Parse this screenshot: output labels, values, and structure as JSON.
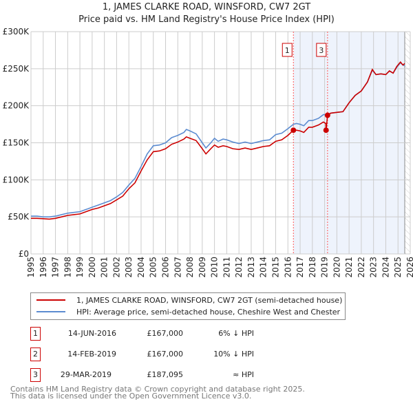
{
  "chart_data": {
    "type": "line",
    "title": "1, JAMES CLARKE ROAD, WINSFORD, CW7 2GT",
    "subtitle": "Price paid vs. HM Land Registry's House Price Index (HPI)",
    "xlim": [
      1995,
      2026
    ],
    "ylim": [
      0,
      300000
    ],
    "yticks": [
      0,
      50000,
      100000,
      150000,
      200000,
      250000,
      300000
    ],
    "ytick_labels": [
      "£0",
      "£50K",
      "£100K",
      "£150K",
      "£200K",
      "£250K",
      "£300K"
    ],
    "xtick_labels": [
      "1995",
      "1996",
      "1997",
      "1998",
      "1999",
      "2000",
      "2001",
      "2002",
      "2003",
      "2004",
      "2005",
      "2006",
      "2007",
      "2008",
      "2009",
      "2010",
      "2011",
      "2012",
      "2013",
      "2014",
      "2015",
      "2016",
      "2017",
      "2018",
      "2019",
      "2020",
      "2021",
      "2022",
      "2023",
      "2024",
      "2025",
      "2026"
    ],
    "grid": true,
    "colors": {
      "property": "#cc0000",
      "hpi": "#5b8bd0",
      "shade": "#eef3fc"
    },
    "shade_from": 2016.45,
    "hatch_from": 2025.55,
    "series": [
      {
        "name": "1, JAMES CLARKE ROAD, WINSFORD, CW7 2GT (semi-detached house)",
        "points": [
          [
            1995,
            48
          ],
          [
            1995.5,
            48
          ],
          [
            1996,
            47.5
          ],
          [
            1996.5,
            47
          ],
          [
            1997,
            48
          ],
          [
            1997.5,
            50
          ],
          [
            1998,
            52
          ],
          [
            1998.5,
            53
          ],
          [
            1999,
            54
          ],
          [
            1999.5,
            57
          ],
          [
            2000,
            60
          ],
          [
            2000.5,
            62
          ],
          [
            2001,
            65
          ],
          [
            2001.5,
            68
          ],
          [
            2002,
            73
          ],
          [
            2002.5,
            78
          ],
          [
            2003,
            88
          ],
          [
            2003.5,
            96
          ],
          [
            2004,
            112
          ],
          [
            2004.5,
            127
          ],
          [
            2005,
            138
          ],
          [
            2005.5,
            139
          ],
          [
            2006,
            142
          ],
          [
            2006.5,
            148
          ],
          [
            2007,
            151
          ],
          [
            2007.5,
            155
          ],
          [
            2007.7,
            158
          ],
          [
            2008,
            156
          ],
          [
            2008.5,
            153
          ],
          [
            2009,
            142
          ],
          [
            2009.3,
            135
          ],
          [
            2009.7,
            142
          ],
          [
            2010,
            147
          ],
          [
            2010.3,
            144
          ],
          [
            2010.7,
            146
          ],
          [
            2011,
            145
          ],
          [
            2011.5,
            142
          ],
          [
            2012,
            141
          ],
          [
            2012.5,
            143
          ],
          [
            2013,
            141
          ],
          [
            2013.5,
            143
          ],
          [
            2014,
            145
          ],
          [
            2014.5,
            146
          ],
          [
            2015,
            152
          ],
          [
            2015.5,
            154
          ],
          [
            2016,
            160
          ],
          [
            2016.45,
            167
          ],
          [
            2016.7,
            167
          ],
          [
            2017,
            166
          ],
          [
            2017.3,
            164
          ],
          [
            2017.7,
            171
          ],
          [
            2018,
            171
          ],
          [
            2018.5,
            174
          ],
          [
            2018.9,
            178
          ],
          [
            2019.1,
            176
          ],
          [
            2019.12,
            167
          ],
          [
            2019.24,
            187
          ],
          [
            2019.5,
            190
          ],
          [
            2020,
            191
          ],
          [
            2020.5,
            192
          ],
          [
            2021,
            204
          ],
          [
            2021.5,
            214
          ],
          [
            2022,
            220
          ],
          [
            2022.5,
            232
          ],
          [
            2022.9,
            249
          ],
          [
            2023.2,
            242
          ],
          [
            2023.6,
            243
          ],
          [
            2024,
            242
          ],
          [
            2024.3,
            247
          ],
          [
            2024.6,
            244
          ],
          [
            2024.9,
            253
          ],
          [
            2025.2,
            259
          ],
          [
            2025.4,
            255
          ],
          [
            2025.55,
            257
          ]
        ]
      },
      {
        "name": "HPI: Average price, semi-detached house, Cheshire West and Chester",
        "points": [
          [
            1995,
            51
          ],
          [
            1995.5,
            51
          ],
          [
            1996,
            50
          ],
          [
            1996.5,
            50
          ],
          [
            1997,
            51
          ],
          [
            1997.5,
            53
          ],
          [
            1998,
            55
          ],
          [
            1998.5,
            56
          ],
          [
            1999,
            57
          ],
          [
            1999.5,
            60
          ],
          [
            2000,
            63
          ],
          [
            2000.5,
            66
          ],
          [
            2001,
            69
          ],
          [
            2001.5,
            72
          ],
          [
            2002,
            77
          ],
          [
            2002.5,
            83
          ],
          [
            2003,
            93
          ],
          [
            2003.5,
            102
          ],
          [
            2004,
            118
          ],
          [
            2004.5,
            135
          ],
          [
            2005,
            146
          ],
          [
            2005.5,
            147
          ],
          [
            2006,
            150
          ],
          [
            2006.5,
            157
          ],
          [
            2007,
            160
          ],
          [
            2007.5,
            164
          ],
          [
            2007.7,
            168
          ],
          [
            2008,
            166
          ],
          [
            2008.5,
            162
          ],
          [
            2009,
            150
          ],
          [
            2009.3,
            143
          ],
          [
            2009.7,
            150
          ],
          [
            2010,
            156
          ],
          [
            2010.3,
            152
          ],
          [
            2010.7,
            155
          ],
          [
            2011,
            154
          ],
          [
            2011.5,
            151
          ],
          [
            2012,
            149
          ],
          [
            2012.5,
            151
          ],
          [
            2013,
            149
          ],
          [
            2013.5,
            151
          ],
          [
            2014,
            153
          ],
          [
            2014.5,
            154
          ],
          [
            2015,
            161
          ],
          [
            2015.5,
            163
          ],
          [
            2016,
            169
          ],
          [
            2016.45,
            175
          ],
          [
            2016.7,
            176
          ],
          [
            2017,
            175
          ],
          [
            2017.3,
            173
          ],
          [
            2017.7,
            180
          ],
          [
            2018,
            180
          ],
          [
            2018.5,
            183
          ],
          [
            2018.9,
            188
          ],
          [
            2019.24,
            188
          ],
          [
            2019.5,
            190
          ],
          [
            2020,
            191
          ],
          [
            2020.5,
            192
          ],
          [
            2021,
            204
          ],
          [
            2021.5,
            214
          ],
          [
            2022,
            220
          ],
          [
            2022.5,
            232
          ],
          [
            2022.9,
            248
          ],
          [
            2023.2,
            242
          ],
          [
            2023.6,
            243
          ],
          [
            2024,
            242
          ],
          [
            2024.3,
            247
          ],
          [
            2024.6,
            244
          ],
          [
            2024.9,
            252
          ],
          [
            2025.2,
            258
          ],
          [
            2025.4,
            255
          ],
          [
            2025.55,
            254
          ]
        ]
      }
    ],
    "sales": [
      {
        "num": "1",
        "x": 2016.45,
        "value": 167000,
        "date": "14-JUN-2016",
        "price": "£167,000",
        "rel": "6% ↓ HPI",
        "boxed": true
      },
      {
        "num": "2",
        "x": 2019.12,
        "value": 167000,
        "date": "14-FEB-2019",
        "price": "£167,000",
        "rel": "10% ↓ HPI",
        "boxed": false
      },
      {
        "num": "3",
        "x": 2019.24,
        "value": 187095,
        "date": "29-MAR-2019",
        "price": "£187,095",
        "rel": "≈ HPI",
        "boxed": true
      }
    ]
  },
  "footer": {
    "line1": "Contains HM Land Registry data © Crown copyright and database right 2025.",
    "line2": "This data is licensed under the Open Government Licence v3.0."
  }
}
